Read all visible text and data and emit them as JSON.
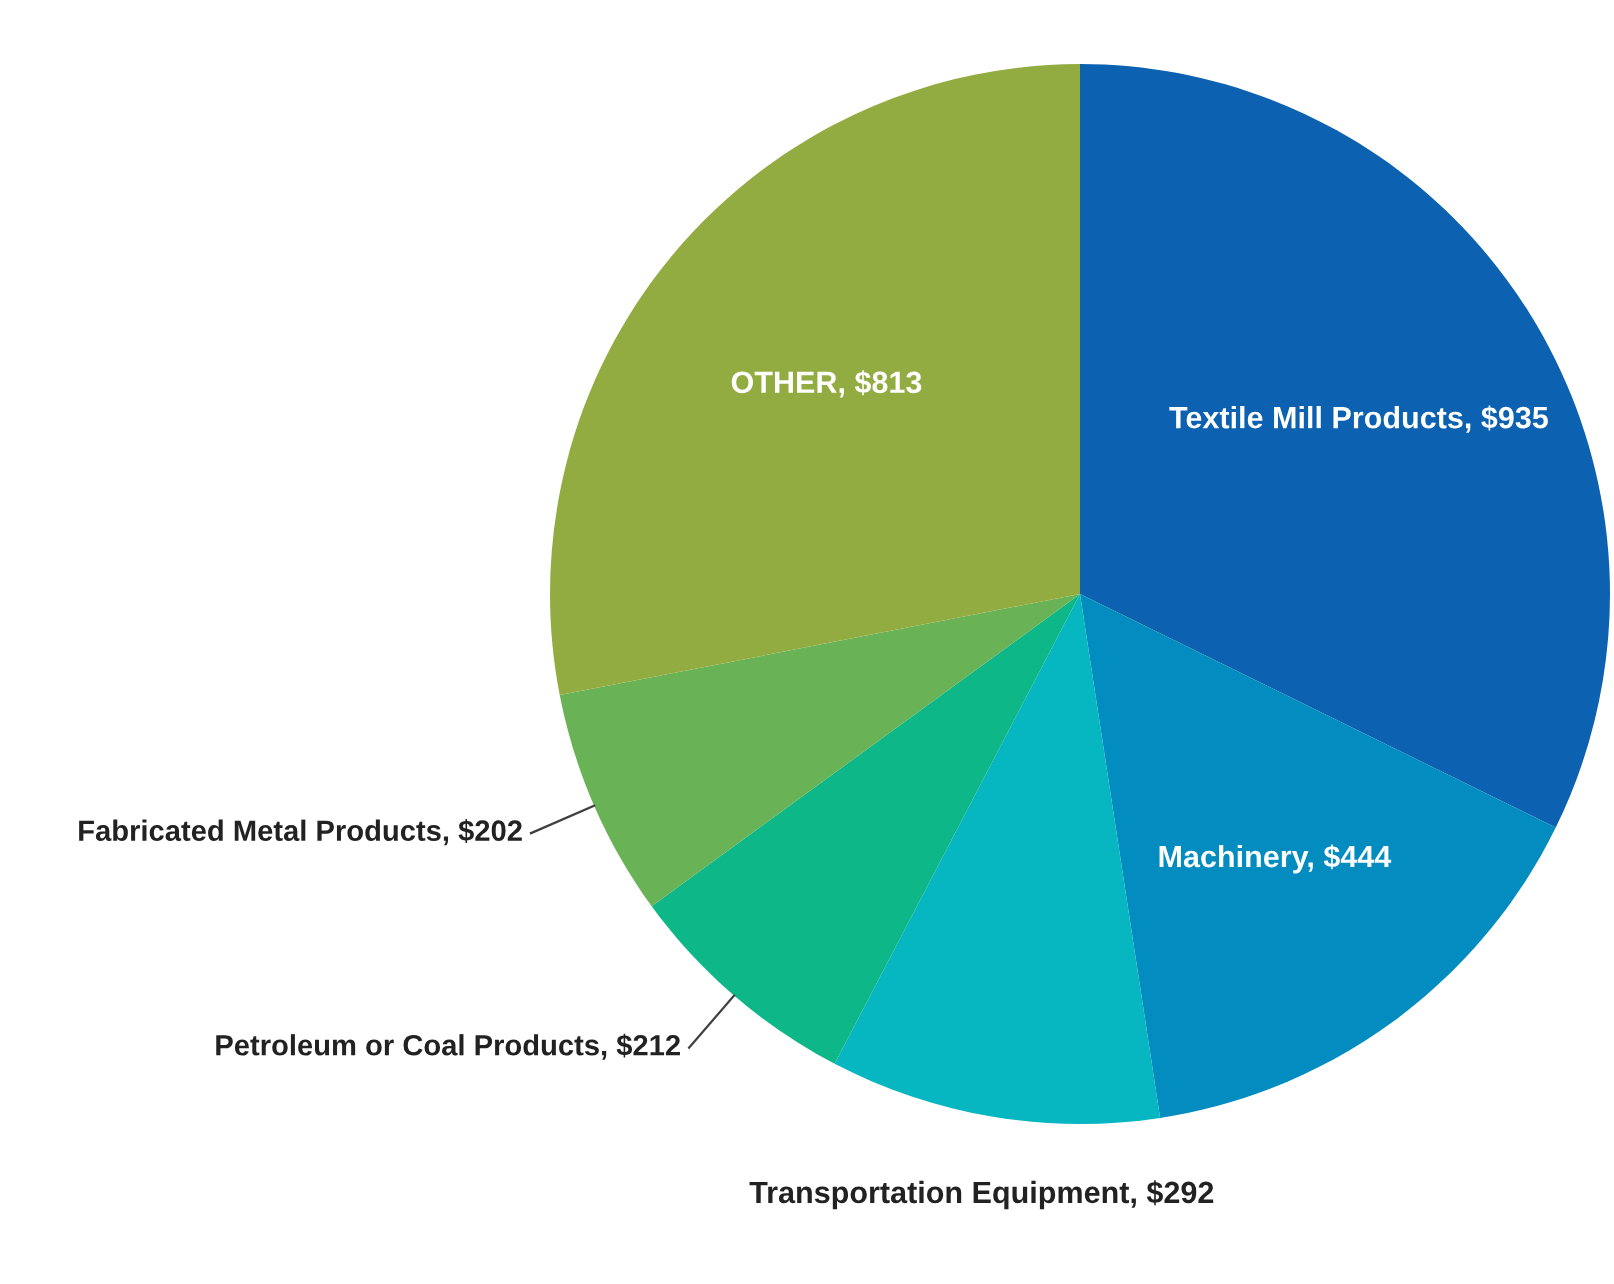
{
  "chart_data": {
    "type": "pie",
    "categories": [
      "Textile Mill Products",
      "Machinery",
      "Transportation Equipment",
      "Petroleum or Coal Products",
      "Fabricated Metal Products",
      "OTHER"
    ],
    "values": [
      935,
      444,
      292,
      212,
      202,
      813
    ],
    "value_labels": [
      "$935",
      "$444",
      "$292",
      "$212",
      "$202",
      "$813"
    ],
    "colors": [
      "#0c62b0",
      "#038cc0",
      "#06b6c0",
      "#0eb787",
      "#69b256",
      "#93ac42"
    ],
    "legend": false
  }
}
